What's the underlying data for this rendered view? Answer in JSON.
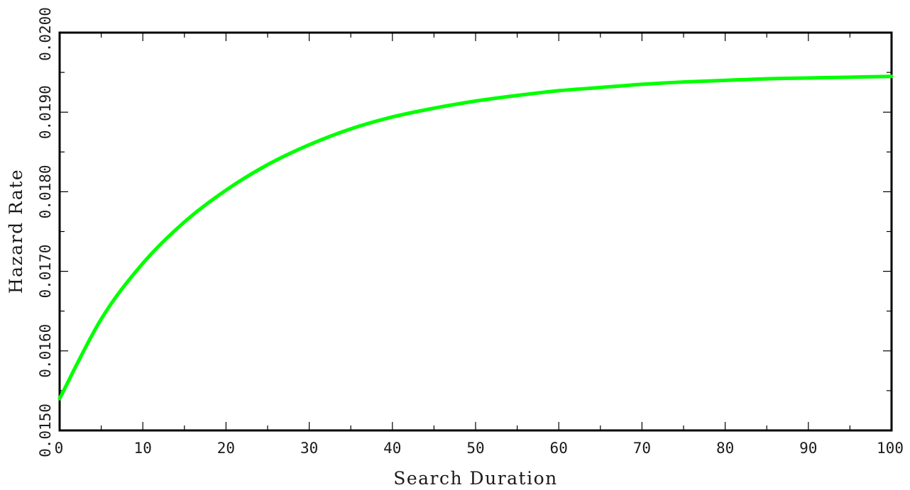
{
  "chart_data": {
    "type": "line",
    "title": "",
    "xlabel": "Search Duration",
    "ylabel": "Hazard Rate",
    "xlim": [
      0,
      100
    ],
    "ylim": [
      0.015,
      0.02
    ],
    "x_tick_labels": [
      "0",
      "10",
      "20",
      "30",
      "40",
      "50",
      "60",
      "70",
      "80",
      "90",
      "100"
    ],
    "y_tick_labels": [
      "0.0150",
      "0.0160",
      "0.0170",
      "0.0180",
      "0.0190",
      "0.0200"
    ],
    "grid": false,
    "legend": "none",
    "series": [
      {
        "color": "#00ff00",
        "x": [
          0,
          5,
          10,
          15,
          20,
          25,
          30,
          35,
          40,
          45,
          50,
          55,
          60,
          65,
          70,
          75,
          80,
          85,
          90,
          95,
          100
        ],
        "y": [
          0.0154,
          0.0164,
          0.0171,
          0.01762,
          0.01802,
          0.01834,
          0.01859,
          0.01879,
          0.01894,
          0.01905,
          0.01914,
          0.01921,
          0.01927,
          0.01931,
          0.01935,
          0.01938,
          0.0194,
          0.01942,
          0.01943,
          0.01944,
          0.01945
        ]
      }
    ]
  }
}
